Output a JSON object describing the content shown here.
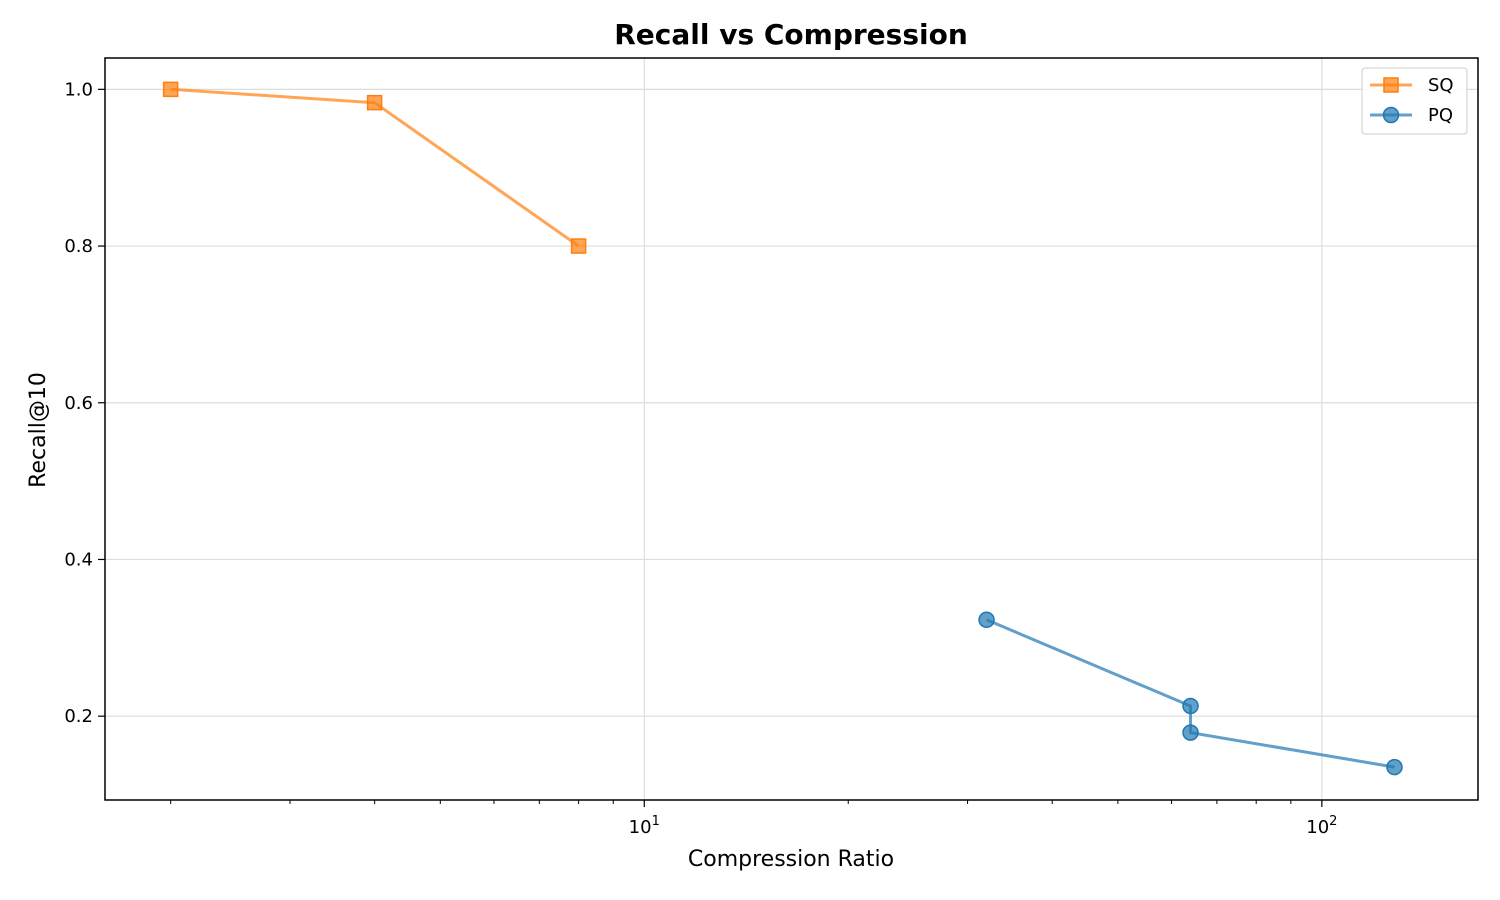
{
  "chart_data": {
    "type": "line",
    "title": "Recall vs Compression",
    "xlabel": "Compression Ratio",
    "ylabel": "Recall@10",
    "xscale": "log",
    "xlim": [
      1.6,
      170
    ],
    "ylim": [
      0.093,
      1.04
    ],
    "x_ticks": [
      {
        "value": 10,
        "base": "10",
        "exp": "1"
      },
      {
        "value": 100,
        "base": "10",
        "exp": "2"
      }
    ],
    "y_ticks": [
      0.2,
      0.4,
      0.6,
      0.8,
      1.0
    ],
    "y_tick_labels": [
      "0.2",
      "0.4",
      "0.6",
      "0.8",
      "1.0"
    ],
    "grid": true,
    "legend_position": "top-right",
    "series": [
      {
        "name": "SQ",
        "marker": "square",
        "color": "#ff7f0e",
        "points": [
          {
            "x": 2,
            "y": 1.0
          },
          {
            "x": 4,
            "y": 0.983
          },
          {
            "x": 8,
            "y": 0.8
          }
        ]
      },
      {
        "name": "PQ",
        "marker": "circle",
        "color": "#1f77b4",
        "points": [
          {
            "x": 32,
            "y": 0.323
          },
          {
            "x": 64,
            "y": 0.213
          },
          {
            "x": 64,
            "y": 0.179
          },
          {
            "x": 128,
            "y": 0.135
          }
        ]
      }
    ]
  }
}
